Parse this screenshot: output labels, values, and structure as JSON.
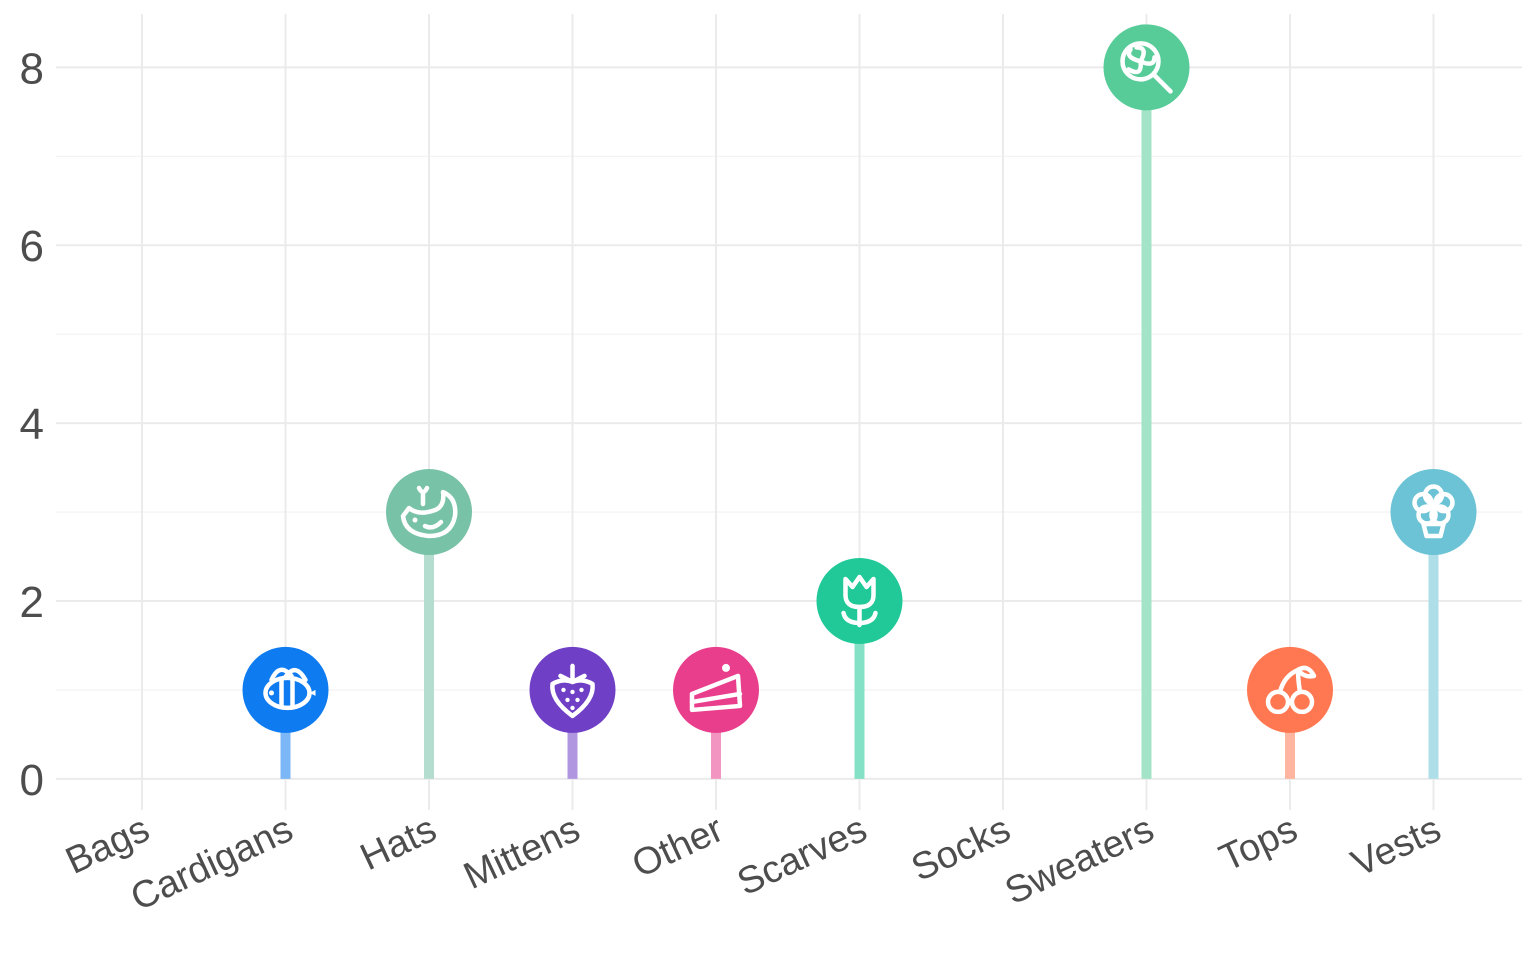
{
  "chart_data": {
    "type": "lollipop",
    "categories": [
      "Bags",
      "Cardigans",
      "Hats",
      "Mittens",
      "Other",
      "Scarves",
      "Socks",
      "Sweaters",
      "Tops",
      "Vests"
    ],
    "values": [
      0,
      1,
      3,
      1,
      1,
      2,
      0,
      8,
      1,
      3
    ],
    "ylim": [
      -0.35,
      8.6
    ],
    "yticks": [
      0,
      2,
      4,
      6,
      8
    ],
    "grid": true,
    "legend": "none",
    "markers": [
      {
        "category": "Bags",
        "icon": null,
        "color": null
      },
      {
        "category": "Cardigans",
        "icon": "bee-icon",
        "color": "#0f7bf0"
      },
      {
        "category": "Hats",
        "icon": "whale-icon",
        "color": "#78c2a8"
      },
      {
        "category": "Mittens",
        "icon": "strawberry-icon",
        "color": "#6f3fc6"
      },
      {
        "category": "Other",
        "icon": "cake-slice-icon",
        "color": "#e83e8c"
      },
      {
        "category": "Scarves",
        "icon": "tulip-icon",
        "color": "#20c997"
      },
      {
        "category": "Socks",
        "icon": null,
        "color": null
      },
      {
        "category": "Sweaters",
        "icon": "lollipop-icon",
        "color": "#57cc99"
      },
      {
        "category": "Tops",
        "icon": "cherries-icon",
        "color": "#ff7851"
      },
      {
        "category": "Vests",
        "icon": "flower-icon",
        "color": "#6cc3d5"
      }
    ]
  }
}
